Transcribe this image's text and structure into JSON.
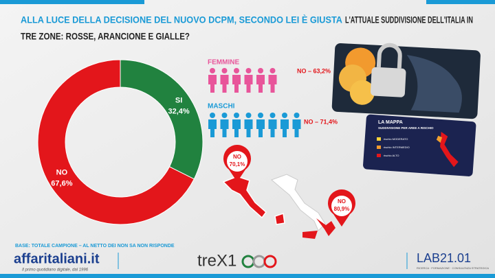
{
  "header": {
    "title_highlight": "ALLA LUCE DELLA DECISIONE DEL NUOVO DCPM, SECONDO LEI È GIUSTA",
    "title_rest": "L'ATTUALE SUDDIVISIONE DELL'ITALIA IN",
    "title_line2": "TRE ZONE: ROSSE, ARANCIONE E GIALLE?"
  },
  "chart_data": {
    "type": "pie",
    "donut": true,
    "categories": [
      "SI",
      "NO"
    ],
    "values": [
      32.4,
      67.6
    ],
    "value_labels": [
      "32,4%",
      "67,6%"
    ],
    "colors": [
      "#21823f",
      "#e3161b"
    ]
  },
  "gender": {
    "female_label": "FEMMINE",
    "female_result": "NO – 63,2%",
    "male_label": "MASCHI",
    "male_result": "NO – 71,4%"
  },
  "map": {
    "pin1_label": "NO",
    "pin1_value": "70,1%",
    "pin2_label": "NO",
    "pin2_value": "80,9%",
    "card_title": "LA MAPPA",
    "card_subtitle": "SUDDIVISIONE PER AREE A RISCHIO",
    "legend": [
      "rischio MODERATO",
      "rischio INTERMEDIO",
      "rischio ALTO"
    ]
  },
  "footer": {
    "base": "BASE: TOTALE CAMPIONE – AL NETTO DEI NON SA NON RISPONDE",
    "logo1": "affaritaliani.it",
    "logo1_tagline": "Il primo quotidiano digitale, dal 1996",
    "logo2": "treX1",
    "logo3": "LAB21.01",
    "logo3_tagline": "RICERCA · FORMAZIONE · CONSULENZA STRATEGICA"
  }
}
